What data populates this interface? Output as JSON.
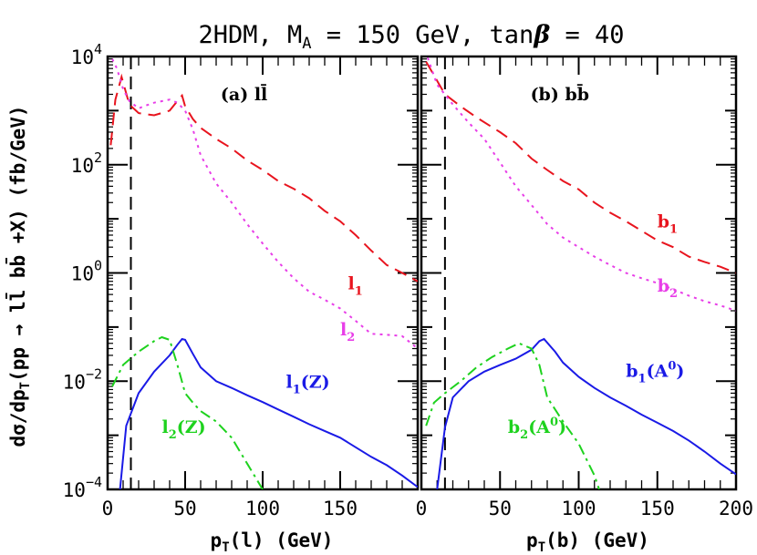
{
  "chart_data": [
    {
      "type": "line",
      "title": "2HDM, M_A = 150 GeV, tanβ = 40",
      "panel_label": "(a) ll̄",
      "xlabel": "p_T(l) (GeV)",
      "ylabel": "dσ/dp_T(pp → ll̄ bb̄ +X) (fb/GeV)",
      "xlim": [
        0,
        200
      ],
      "ylim": [
        0.0001,
        10000
      ],
      "yscale": "log",
      "x_ticks": [
        "0",
        "50",
        "100",
        "150"
      ],
      "y_ticks": [
        {
          "base": "10",
          "exp": "4"
        },
        {
          "base": "10",
          "exp": "2"
        },
        {
          "base": "10",
          "exp": "0"
        },
        {
          "base": "10",
          "exp": "−2"
        },
        {
          "base": "10",
          "exp": "−4"
        }
      ],
      "cut_line_x": 15,
      "series": [
        {
          "name": "l1",
          "label_main": "l",
          "label_sub": "1",
          "label_suffix": "",
          "label_sup": "",
          "color": "#e8141e",
          "dash": "14,8",
          "label_pos": [
            155,
            0.5
          ],
          "points": [
            [
              2,
              230
            ],
            [
              5,
              1600
            ],
            [
              9,
              4200
            ],
            [
              14,
              1300
            ],
            [
              20,
              900
            ],
            [
              30,
              820
            ],
            [
              40,
              1000
            ],
            [
              45,
              1500
            ],
            [
              48,
              1900
            ],
            [
              50,
              1200
            ],
            [
              55,
              700
            ],
            [
              60,
              480
            ],
            [
              70,
              300
            ],
            [
              80,
              200
            ],
            [
              90,
              120
            ],
            [
              100,
              80
            ],
            [
              110,
              50
            ],
            [
              120,
              36
            ],
            [
              130,
              24
            ],
            [
              140,
              14
            ],
            [
              150,
              9
            ],
            [
              160,
              5
            ],
            [
              170,
              2.6
            ],
            [
              180,
              1.4
            ],
            [
              190,
              1.0
            ],
            [
              200,
              0.7
            ]
          ]
        },
        {
          "name": "l2",
          "label_main": "l",
          "label_sub": "2",
          "label_suffix": "",
          "label_sup": "",
          "color": "#e83ee8",
          "dash": "3,5",
          "label_pos": [
            150,
            0.07
          ],
          "points": [
            [
              3,
              9000
            ],
            [
              6,
              6000
            ],
            [
              10,
              2500
            ],
            [
              14,
              1500
            ],
            [
              20,
              1100
            ],
            [
              25,
              1250
            ],
            [
              30,
              1400
            ],
            [
              40,
              1600
            ],
            [
              45,
              1400
            ],
            [
              50,
              1000
            ],
            [
              55,
              450
            ],
            [
              60,
              150
            ],
            [
              70,
              45
            ],
            [
              80,
              20
            ],
            [
              90,
              8
            ],
            [
              100,
              3.5
            ],
            [
              110,
              1.6
            ],
            [
              120,
              0.8
            ],
            [
              130,
              0.45
            ],
            [
              140,
              0.32
            ],
            [
              150,
              0.22
            ],
            [
              160,
              0.13
            ],
            [
              170,
              0.075
            ],
            [
              180,
              0.072
            ],
            [
              190,
              0.068
            ],
            [
              200,
              0.04
            ]
          ]
        },
        {
          "name": "l1(Z)",
          "label_main": "l",
          "label_sub": "1",
          "label_suffix": "(Z)",
          "label_sup": "",
          "color": "#1a1ae6",
          "dash": "",
          "label_pos": [
            115,
            0.0075
          ],
          "points": [
            [
              8,
              0.0001
            ],
            [
              12,
              0.0015
            ],
            [
              20,
              0.006
            ],
            [
              30,
              0.015
            ],
            [
              40,
              0.03
            ],
            [
              45,
              0.047
            ],
            [
              48,
              0.06
            ],
            [
              50,
              0.058
            ],
            [
              55,
              0.032
            ],
            [
              60,
              0.018
            ],
            [
              70,
              0.01
            ],
            [
              80,
              0.0075
            ],
            [
              90,
              0.0055
            ],
            [
              100,
              0.0041
            ],
            [
              110,
              0.003
            ],
            [
              120,
              0.0022
            ],
            [
              130,
              0.0016
            ],
            [
              140,
              0.0012
            ],
            [
              150,
              0.0009
            ],
            [
              160,
              0.0006
            ],
            [
              170,
              0.0004
            ],
            [
              180,
              0.00028
            ],
            [
              190,
              0.00018
            ],
            [
              200,
              0.00011
            ]
          ]
        },
        {
          "name": "l2(Z)",
          "label_main": "l",
          "label_sub": "2",
          "label_suffix": "(Z)",
          "label_sup": "",
          "color": "#1ed21e",
          "dash": "12,5,3,5",
          "label_pos": [
            35,
            0.0011
          ],
          "points": [
            [
              3,
              0.008
            ],
            [
              10,
              0.02
            ],
            [
              20,
              0.035
            ],
            [
              30,
              0.055
            ],
            [
              35,
              0.065
            ],
            [
              40,
              0.058
            ],
            [
              45,
              0.02
            ],
            [
              50,
              0.006
            ],
            [
              55,
              0.004
            ],
            [
              60,
              0.0028
            ],
            [
              70,
              0.0018
            ],
            [
              80,
              0.0009
            ],
            [
              90,
              0.0003
            ],
            [
              100,
              0.0001
            ]
          ]
        }
      ]
    },
    {
      "type": "line",
      "panel_label": "(b) bb̄",
      "xlabel": "p_T(b) (GeV)",
      "xlim": [
        0,
        200
      ],
      "ylim": [
        0.0001,
        10000
      ],
      "yscale": "log",
      "x_ticks": [
        "0",
        "50",
        "100",
        "150",
        "200"
      ],
      "cut_line_x": 15,
      "series": [
        {
          "name": "b1",
          "label_main": "b",
          "label_sub": "1",
          "label_suffix": "",
          "label_sup": "",
          "color": "#e8141e",
          "dash": "14,8",
          "label_pos": [
            150,
            7
          ],
          "points": [
            [
              3,
              8000
            ],
            [
              8,
              4500
            ],
            [
              15,
              2000
            ],
            [
              25,
              1200
            ],
            [
              35,
              750
            ],
            [
              50,
              400
            ],
            [
              60,
              250
            ],
            [
              70,
              130
            ],
            [
              80,
              80
            ],
            [
              90,
              50
            ],
            [
              100,
              35
            ],
            [
              110,
              20
            ],
            [
              120,
              13
            ],
            [
              130,
              9
            ],
            [
              140,
              6
            ],
            [
              150,
              4
            ],
            [
              160,
              3
            ],
            [
              170,
              2
            ],
            [
              180,
              1.6
            ],
            [
              190,
              1.3
            ],
            [
              200,
              1.0
            ]
          ]
        },
        {
          "name": "b2",
          "label_main": "b",
          "label_sub": "2",
          "label_suffix": "",
          "label_sup": "",
          "color": "#e83ee8",
          "dash": "3,5",
          "label_pos": [
            150,
            0.45
          ],
          "points": [
            [
              4,
              9500
            ],
            [
              10,
              3000
            ],
            [
              20,
              1300
            ],
            [
              30,
              600
            ],
            [
              40,
              300
            ],
            [
              50,
              110
            ],
            [
              60,
              40
            ],
            [
              70,
              18
            ],
            [
              80,
              8
            ],
            [
              90,
              4.5
            ],
            [
              100,
              3
            ],
            [
              110,
              2
            ],
            [
              120,
              1.4
            ],
            [
              130,
              1.0
            ],
            [
              140,
              0.8
            ],
            [
              150,
              0.65
            ],
            [
              160,
              0.5
            ],
            [
              170,
              0.38
            ],
            [
              180,
              0.3
            ],
            [
              190,
              0.25
            ],
            [
              200,
              0.2
            ]
          ]
        },
        {
          "name": "b1(A0)",
          "label_main": "b",
          "label_sub": "1",
          "label_suffix": "(A",
          "label_sup": "0",
          "color": "#1a1ae6",
          "dash": "",
          "label_pos": [
            130,
            0.012
          ],
          "points": [
            [
              10,
              0.0001
            ],
            [
              15,
              0.0014
            ],
            [
              20,
              0.005
            ],
            [
              30,
              0.01
            ],
            [
              40,
              0.015
            ],
            [
              50,
              0.02
            ],
            [
              60,
              0.026
            ],
            [
              70,
              0.038
            ],
            [
              75,
              0.055
            ],
            [
              78,
              0.06
            ],
            [
              85,
              0.035
            ],
            [
              90,
              0.022
            ],
            [
              100,
              0.012
            ],
            [
              110,
              0.0075
            ],
            [
              120,
              0.005
            ],
            [
              130,
              0.0035
            ],
            [
              140,
              0.0024
            ],
            [
              150,
              0.0017
            ],
            [
              160,
              0.0012
            ],
            [
              170,
              0.0008
            ],
            [
              180,
              0.0005
            ],
            [
              190,
              0.0003
            ],
            [
              200,
              0.00019
            ]
          ]
        },
        {
          "name": "b2(A0)",
          "label_main": "b",
          "label_sub": "2",
          "label_suffix": "(A",
          "label_sup": "0",
          "color": "#1ed21e",
          "dash": "12,5,3,5",
          "label_pos": [
            55,
            0.0011
          ],
          "points": [
            [
              3,
              0.0015
            ],
            [
              8,
              0.004
            ],
            [
              15,
              0.006
            ],
            [
              25,
              0.01
            ],
            [
              35,
              0.018
            ],
            [
              45,
              0.028
            ],
            [
              55,
              0.04
            ],
            [
              62,
              0.05
            ],
            [
              70,
              0.04
            ],
            [
              75,
              0.02
            ],
            [
              80,
              0.005
            ],
            [
              90,
              0.0018
            ],
            [
              100,
              0.0007
            ],
            [
              110,
              0.00018
            ],
            [
              113,
              0.0001
            ]
          ]
        }
      ]
    }
  ]
}
